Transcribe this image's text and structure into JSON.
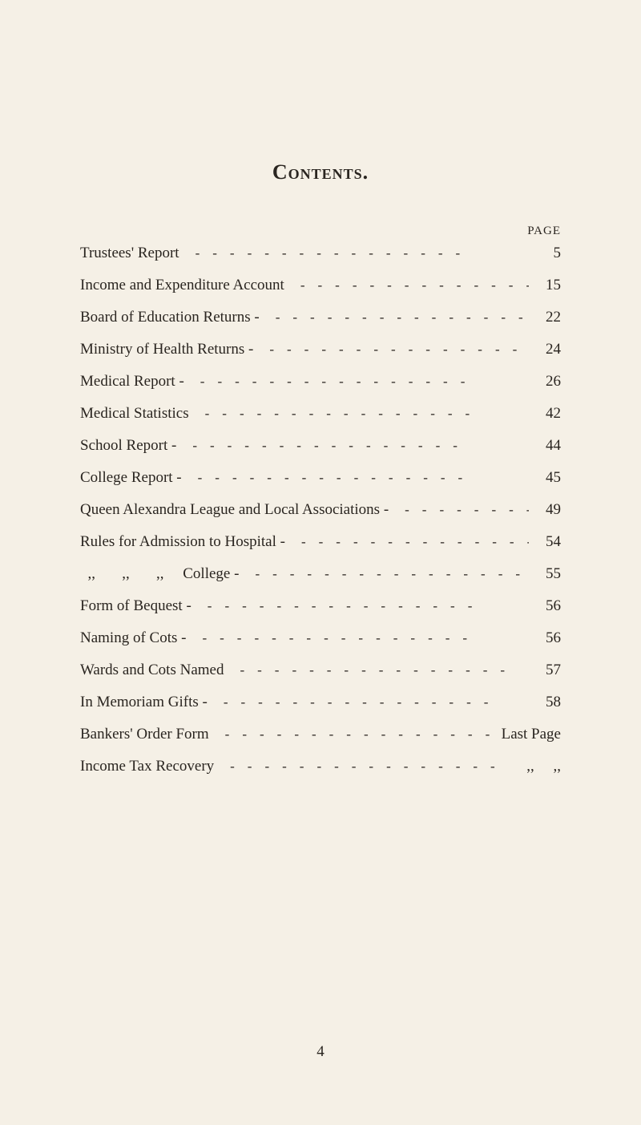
{
  "background_color": "#f5f0e6",
  "text_color": "#2a2520",
  "font_family": "Georgia, serif",
  "title": "Contents.",
  "page_header": "PAGE",
  "leader_char": "-",
  "toc": [
    {
      "label": "Trustees' Report",
      "page": "5"
    },
    {
      "label": "Income and Expenditure Account",
      "page": "15"
    },
    {
      "label": "Board of Education Returns -",
      "page": "22"
    },
    {
      "label": "Ministry of Health Returns -",
      "page": "24"
    },
    {
      "label": "Medical Report -",
      "page": "26"
    },
    {
      "label": "Medical Statistics",
      "page": "42"
    },
    {
      "label": "School Report -",
      "page": "44"
    },
    {
      "label": "College Report -",
      "page": "45"
    },
    {
      "label": "Queen Alexandra League and Local Associations -",
      "page": "49"
    },
    {
      "label": "Rules for Admission to Hospital -",
      "page": "54"
    },
    {
      "label": "  ,,       ,,       ,,     College -",
      "page": "55"
    },
    {
      "label": "Form of Bequest -",
      "page": "56"
    },
    {
      "label": "Naming of Cots -",
      "page": "56"
    },
    {
      "label": "Wards and Cots Named",
      "page": "57"
    },
    {
      "label": "In Memoriam Gifts -",
      "page": "58"
    },
    {
      "label": "Bankers' Order Form",
      "page": "Last Page"
    },
    {
      "label": "Income Tax Recovery",
      "page": ",,     ,,"
    }
  ],
  "page_number": "4"
}
